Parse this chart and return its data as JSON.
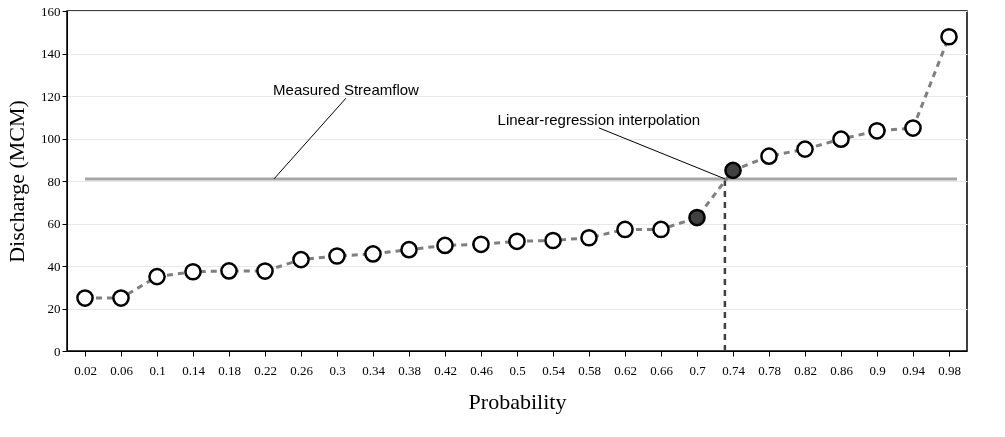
{
  "chart_data": {
    "type": "line",
    "xlabel": "Probability",
    "ylabel": "Discharge (MCM)",
    "x": [
      0.02,
      0.06,
      0.1,
      0.14,
      0.18,
      0.22,
      0.26,
      0.3,
      0.34,
      0.38,
      0.42,
      0.46,
      0.5,
      0.54,
      0.58,
      0.62,
      0.66,
      0.7,
      0.74,
      0.78,
      0.82,
      0.86,
      0.9,
      0.94,
      0.98
    ],
    "series": [
      {
        "color": "#7f7f7f",
        "colors": [
          "#ffffff",
          "#ffffff",
          "#ffffff",
          "#ffffff",
          "#ffffff",
          "#ffffff",
          "#ffffff",
          "#ffffff",
          "#ffffff",
          "#ffffff",
          "#ffffff",
          "#ffffff",
          "#ffffff",
          "#ffffff",
          "#ffffff",
          "#ffffff",
          "#ffffff",
          "#404040",
          "#404040",
          "#ffffff",
          "#ffffff",
          "#ffffff",
          "#ffffff",
          "#ffffff",
          "#ffffff"
        ],
        "values": [
          24.9,
          24.9,
          35,
          37.3,
          37.7,
          37.6,
          43,
          44.7,
          45.7,
          47.7,
          49.7,
          50.2,
          51.6,
          52,
          53.3,
          57.2,
          57.2,
          62.8,
          85,
          91.7,
          95,
          99.7,
          103.6,
          104.9,
          147.9
        ]
      }
    ],
    "xlim": [
      0,
      1
    ],
    "xticks": [
      0.02,
      0.06,
      0.1,
      0.14,
      0.18,
      0.22,
      0.26,
      0.3,
      0.34,
      0.38,
      0.42,
      0.46,
      0.5,
      0.54,
      0.58,
      0.62,
      0.66,
      0.7,
      0.74,
      0.78,
      0.82,
      0.86,
      0.9,
      0.94,
      0.98
    ],
    "ylim": [
      0,
      160
    ],
    "yticks": [
      0,
      20,
      40,
      60,
      80,
      100,
      120,
      140,
      160
    ],
    "grid": "y",
    "marker": "circle",
    "line_style": "dashed",
    "ref_lines": [
      {
        "axis": "y",
        "value": 81,
        "color": "#a6a6a6",
        "line_style": "solid"
      },
      {
        "axis": "x",
        "value": 0.731,
        "color": "#404040",
        "line_style": "dashed"
      }
    ],
    "annotations": [
      {
        "text": "Measured Streamflow",
        "x": 0.23,
        "y": 81
      },
      {
        "text": "Linear-regression interpolation",
        "x": 0.731,
        "y": 81
      }
    ]
  }
}
